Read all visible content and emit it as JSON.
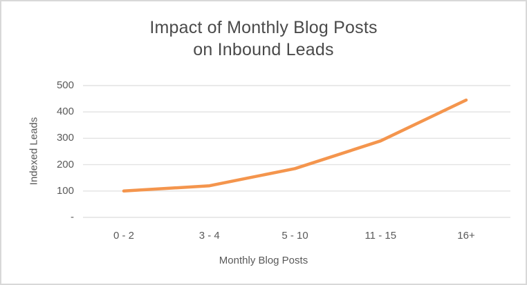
{
  "chart_data": {
    "type": "line",
    "title": "Impact of Monthly Blog Posts on Inbound Leads",
    "title_lines": [
      "Impact of Monthly Blog Posts",
      "on Inbound Leads"
    ],
    "xlabel": "Monthly Blog Posts",
    "ylabel": "Indexed Leads",
    "categories": [
      "0 - 2",
      "3 - 4",
      "5 - 10",
      "11 - 15",
      "16+"
    ],
    "series": [
      {
        "name": "Indexed Leads",
        "values": [
          100,
          120,
          185,
          290,
          445
        ]
      }
    ],
    "ylim": [
      0,
      500
    ],
    "ytick_step": 100,
    "ytick_labels": [
      "-",
      "100",
      "200",
      "300",
      "400",
      "500"
    ],
    "grid": "horizontal",
    "legend": "none",
    "line_color": "#F4954D",
    "title_color": "#4A4A4A",
    "text_color": "#595959",
    "gridline_color": "#E2E2E2",
    "border_color": "#D8D8D8",
    "background": "#FFFFFF"
  }
}
